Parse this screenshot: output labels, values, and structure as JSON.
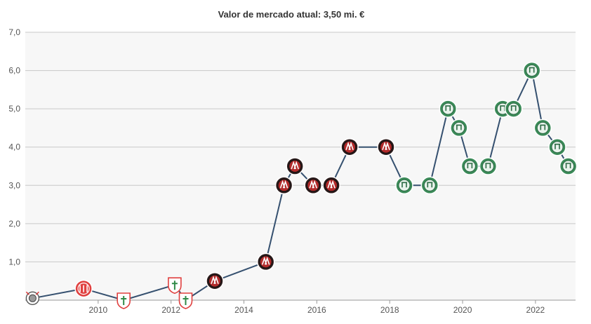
{
  "chart_data": {
    "type": "line",
    "title": "Valor de mercado atual: 3,50 mi. €",
    "xlabel": "",
    "ylabel": "",
    "ylim": [
      0,
      7
    ],
    "xlim": [
      2008.0,
      2023.1
    ],
    "grid": true,
    "y_ticks": [
      "1,0",
      "2,0",
      "3,0",
      "4,0",
      "5,0",
      "6,0",
      "7,0"
    ],
    "y_tick_values": [
      1,
      2,
      3,
      4,
      5,
      6,
      7
    ],
    "x_ticks": [
      "2010",
      "2012",
      "2014",
      "2016",
      "2018",
      "2020",
      "2022"
    ],
    "x_tick_values": [
      2010,
      2012,
      2014,
      2016,
      2018,
      2020,
      2022
    ],
    "colors": {
      "line": "#35506f",
      "plot_bg": "#f7f7f7",
      "grid": "#c8c8c8",
      "corinthians": "#9a9a9a",
      "nautico": "#e0403f",
      "portuguesa": "#e0403f",
      "athletico": "#b12a2a",
      "palmeiras": "#3b8a58"
    },
    "series": [
      {
        "values": [
          {
            "x": 2008.2,
            "y": 0.05,
            "club": "corinthians"
          },
          {
            "x": 2009.6,
            "y": 0.3,
            "club": "nautico"
          },
          {
            "x": 2010.7,
            "y": 0.0,
            "club": "portuguesa"
          },
          {
            "x": 2012.1,
            "y": 0.4,
            "club": "portuguesa"
          },
          {
            "x": 2012.4,
            "y": 0.0,
            "club": "portuguesa"
          },
          {
            "x": 2013.2,
            "y": 0.5,
            "club": "athletico"
          },
          {
            "x": 2014.6,
            "y": 1.0,
            "club": "athletico"
          },
          {
            "x": 2015.1,
            "y": 3.0,
            "club": "athletico"
          },
          {
            "x": 2015.4,
            "y": 3.5,
            "club": "athletico"
          },
          {
            "x": 2015.9,
            "y": 3.0,
            "club": "athletico"
          },
          {
            "x": 2016.4,
            "y": 3.0,
            "club": "athletico"
          },
          {
            "x": 2016.9,
            "y": 4.0,
            "club": "athletico"
          },
          {
            "x": 2017.9,
            "y": 4.0,
            "club": "athletico"
          },
          {
            "x": 2018.4,
            "y": 3.0,
            "club": "palmeiras"
          },
          {
            "x": 2019.1,
            "y": 3.0,
            "club": "palmeiras"
          },
          {
            "x": 2019.6,
            "y": 5.0,
            "club": "palmeiras"
          },
          {
            "x": 2019.9,
            "y": 4.5,
            "club": "palmeiras"
          },
          {
            "x": 2020.2,
            "y": 3.5,
            "club": "palmeiras"
          },
          {
            "x": 2020.7,
            "y": 3.5,
            "club": "palmeiras"
          },
          {
            "x": 2021.1,
            "y": 5.0,
            "club": "palmeiras"
          },
          {
            "x": 2021.4,
            "y": 5.0,
            "club": "palmeiras"
          },
          {
            "x": 2021.9,
            "y": 6.0,
            "club": "palmeiras"
          },
          {
            "x": 2022.2,
            "y": 4.5,
            "club": "palmeiras"
          },
          {
            "x": 2022.6,
            "y": 4.0,
            "club": "palmeiras"
          },
          {
            "x": 2022.9,
            "y": 3.5,
            "club": "palmeiras"
          }
        ]
      }
    ]
  }
}
